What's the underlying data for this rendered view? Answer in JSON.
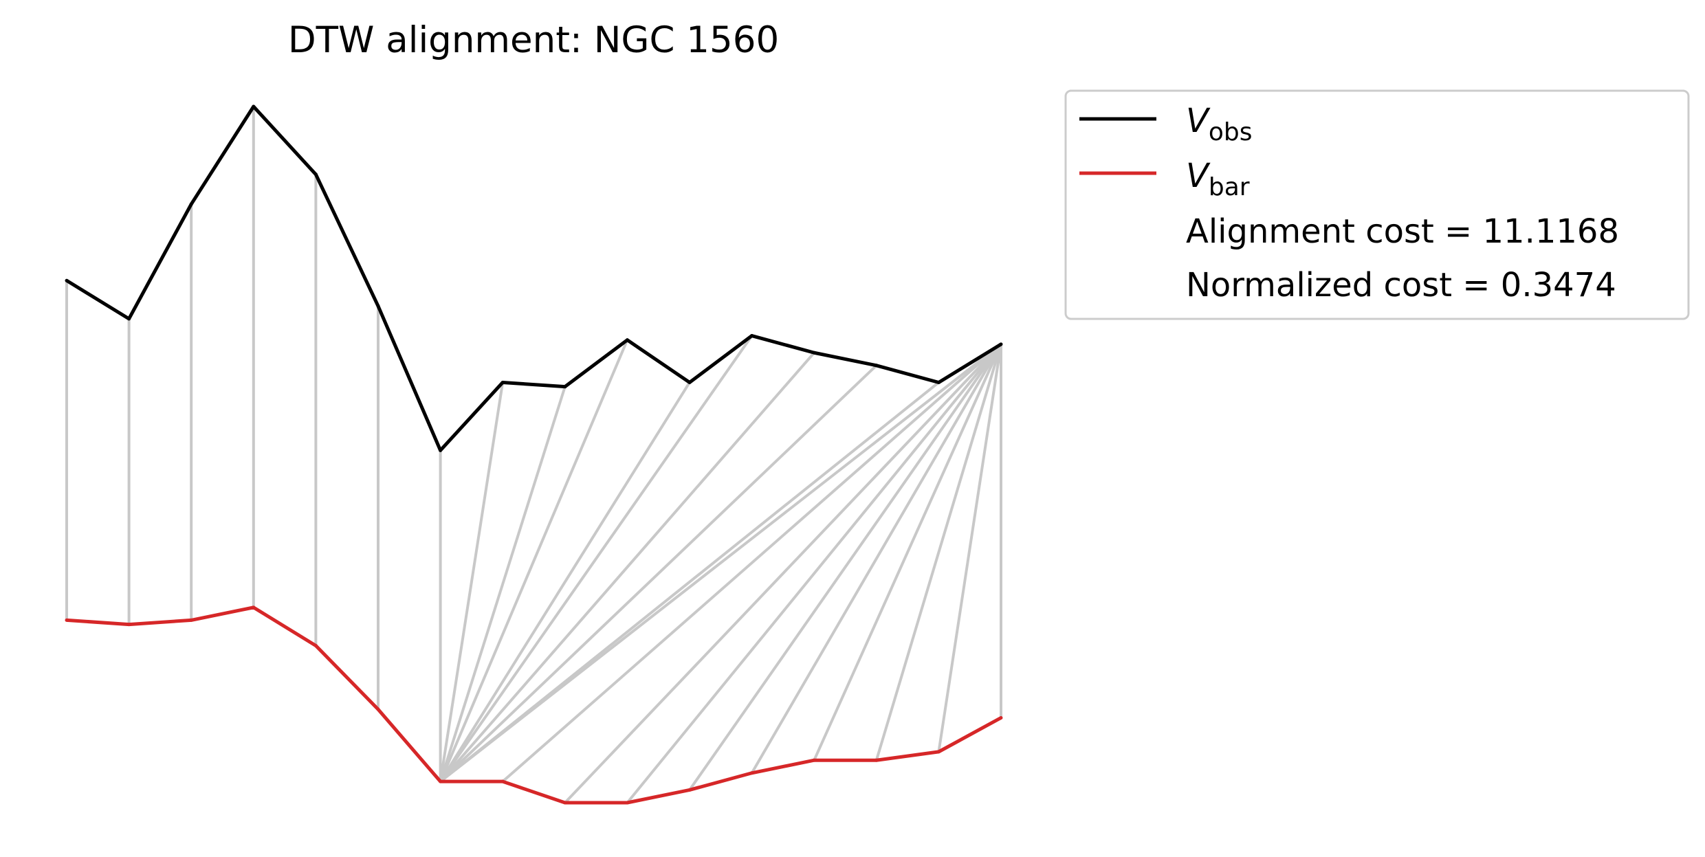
{
  "chart_data": {
    "type": "line",
    "title": "DTW alignment: NGC 1560",
    "series": [
      {
        "key": "obs",
        "name": "V",
        "subscript": "obs",
        "color": "#000000",
        "values": [
          1.8,
          1.71,
          1.98,
          2.21,
          2.05,
          1.74,
          1.4,
          1.56,
          1.55,
          1.66,
          1.56,
          1.67,
          1.63,
          1.6,
          1.56,
          1.65
        ]
      },
      {
        "key": "bar",
        "name": "V",
        "subscript": "bar",
        "color": "#d62728",
        "values": [
          1.0,
          0.99,
          1.0,
          1.03,
          0.94,
          0.79,
          0.62,
          0.62,
          0.57,
          0.57,
          0.6,
          0.64,
          0.67,
          0.67,
          0.69,
          0.77
        ]
      }
    ],
    "alignment_path": [
      [
        0,
        0
      ],
      [
        1,
        1
      ],
      [
        2,
        2
      ],
      [
        3,
        3
      ],
      [
        4,
        4
      ],
      [
        5,
        5
      ],
      [
        6,
        6
      ],
      [
        7,
        6
      ],
      [
        8,
        6
      ],
      [
        9,
        6
      ],
      [
        10,
        6
      ],
      [
        11,
        6
      ],
      [
        12,
        6
      ],
      [
        13,
        6
      ],
      [
        14,
        6
      ],
      [
        15,
        6
      ],
      [
        15,
        7
      ],
      [
        15,
        8
      ],
      [
        15,
        9
      ],
      [
        15,
        10
      ],
      [
        15,
        11
      ],
      [
        15,
        12
      ],
      [
        15,
        13
      ],
      [
        15,
        14
      ],
      [
        15,
        15
      ]
    ],
    "alignment_color": "#c8c8c8",
    "alignment_cost_label": "Alignment cost = 11.1168",
    "normalized_cost_label": "Normalized cost = 0.3474",
    "axes_visible": false,
    "legend_position": "outside upper right"
  }
}
